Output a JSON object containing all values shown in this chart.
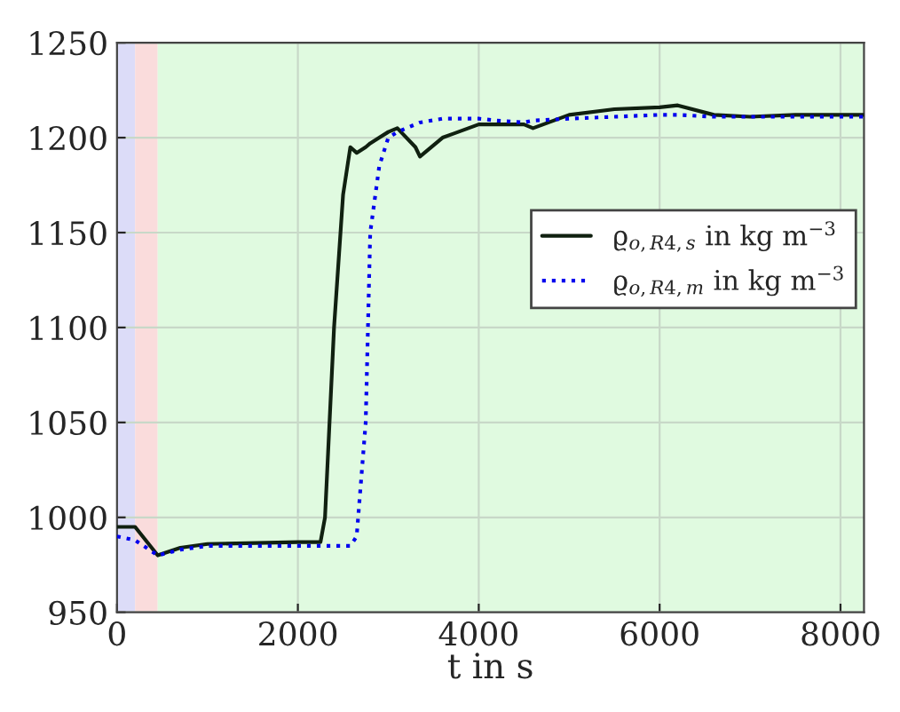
{
  "chart_data": {
    "type": "line",
    "xlabel": "t in s",
    "x": [
      0,
      200,
      450,
      700,
      1000,
      2000,
      2250,
      2300,
      2400,
      2500,
      2580,
      2650,
      2750,
      2800,
      2900,
      3000,
      3100,
      3300,
      3350,
      3600,
      4000,
      4200,
      4500,
      4600,
      5000,
      5500,
      6000,
      6200,
      6600,
      7000,
      7500,
      8260
    ],
    "series": [
      {
        "name": "ϱ$_{o,R4,s}$ in kg m$^{−3}$",
        "color": "#102010",
        "line_style": "solid",
        "values": [
          995,
          995,
          980,
          984,
          986,
          987,
          987,
          1000,
          1100,
          1170,
          1195,
          1192,
          1195,
          1197,
          1200,
          1203,
          1205,
          1195,
          1190,
          1200,
          1207,
          1207,
          1207,
          1205,
          1212,
          1215,
          1216,
          1217,
          1212,
          1211,
          1212,
          1212
        ]
      },
      {
        "name": "ϱ$_{o,R4,m}$ in kg m$^{−3}$",
        "color": "#0000ee",
        "line_style": "dotted",
        "values": [
          990,
          988,
          980,
          983,
          985,
          985,
          985,
          985,
          985,
          985,
          985,
          990,
          1050,
          1150,
          1185,
          1200,
          1203,
          1207,
          1208,
          1210,
          1210,
          1209,
          1208,
          1209,
          1210,
          1211,
          1212,
          1212,
          1211,
          1211,
          1211,
          1211
        ]
      }
    ],
    "bands": [
      {
        "axis": "x",
        "from": 0,
        "to": 200,
        "color": "#dcdcf8"
      },
      {
        "axis": "x",
        "from": 200,
        "to": 450,
        "color": "#fadcdc"
      },
      {
        "axis": "x",
        "from": 450,
        "to": 8260,
        "color": "#e0fae0"
      }
    ],
    "xlim": [
      0,
      8260
    ],
    "xticks": [
      0,
      2000,
      4000,
      6000,
      8000
    ],
    "ylim": [
      950,
      1250
    ],
    "yticks": [
      950,
      1000,
      1050,
      1100,
      1150,
      1200,
      1250
    ],
    "grid": true,
    "legend": "right",
    "marker": "none"
  }
}
